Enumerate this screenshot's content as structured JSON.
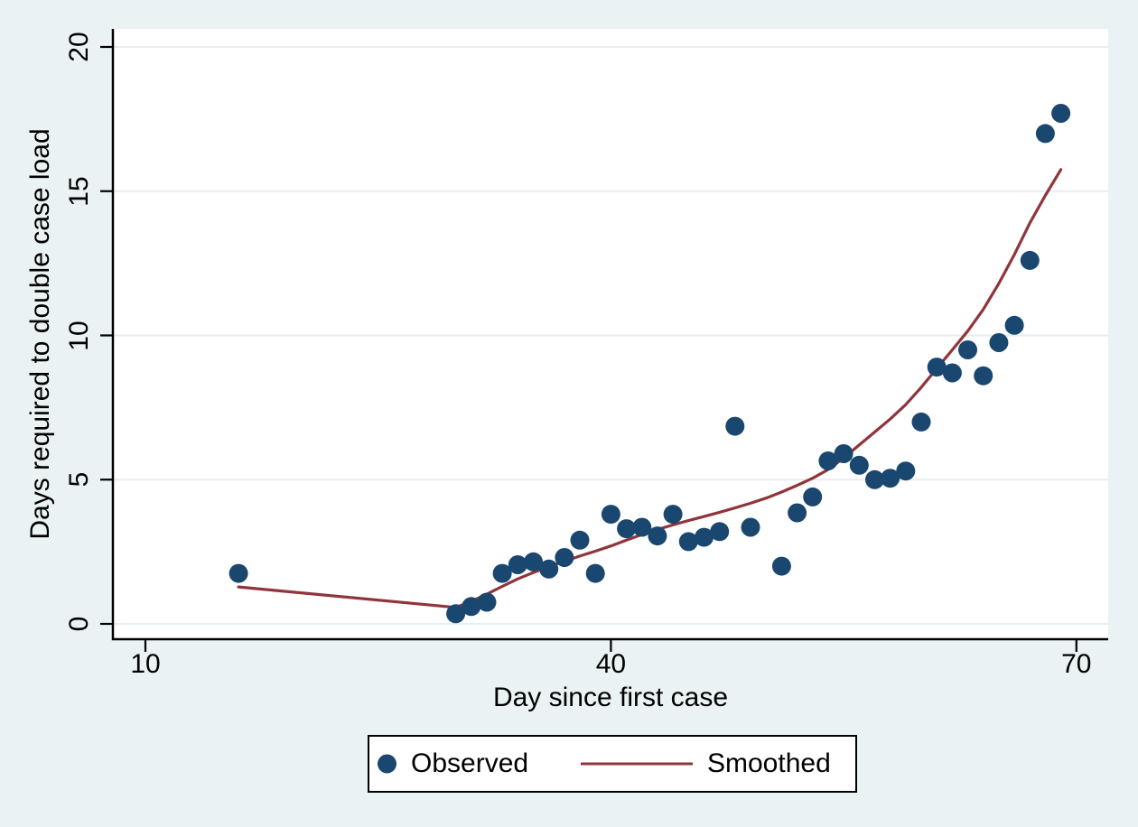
{
  "chart_data": {
    "type": "scatter",
    "title": "",
    "xlabel": "Day since first case",
    "ylabel": "Days required to double case load",
    "xlim": [
      8,
      72
    ],
    "ylim": [
      -0.55,
      20.6
    ],
    "x_ticks": [
      10,
      40,
      70
    ],
    "y_ticks": [
      0,
      5,
      10,
      15,
      20
    ],
    "grid": "horizontal",
    "legend_position": "bottom-center",
    "series": [
      {
        "name": "Observed",
        "type": "scatter",
        "color": "#1a476f",
        "points": [
          [
            16,
            1.75
          ],
          [
            30,
            0.35
          ],
          [
            31,
            0.6
          ],
          [
            32,
            0.75
          ],
          [
            33,
            1.75
          ],
          [
            34,
            2.05
          ],
          [
            35,
            2.15
          ],
          [
            36,
            1.9
          ],
          [
            37,
            2.3
          ],
          [
            38,
            2.9
          ],
          [
            39,
            1.75
          ],
          [
            40,
            3.8
          ],
          [
            41,
            3.3
          ],
          [
            42,
            3.35
          ],
          [
            43,
            3.05
          ],
          [
            44,
            3.8
          ],
          [
            45,
            2.85
          ],
          [
            46,
            3.0
          ],
          [
            47,
            3.2
          ],
          [
            48,
            6.85
          ],
          [
            49,
            3.35
          ],
          [
            51,
            2.0
          ],
          [
            52,
            3.85
          ],
          [
            53,
            4.4
          ],
          [
            54,
            5.65
          ],
          [
            55,
            5.9
          ],
          [
            56,
            5.5
          ],
          [
            57,
            5.0
          ],
          [
            58,
            5.05
          ],
          [
            59,
            5.3
          ],
          [
            60,
            7.0
          ],
          [
            61,
            8.9
          ],
          [
            62,
            8.7
          ],
          [
            63,
            9.5
          ],
          [
            64,
            8.6
          ],
          [
            65,
            9.75
          ],
          [
            66,
            10.35
          ],
          [
            67,
            12.6
          ],
          [
            68,
            17.0
          ],
          [
            69,
            17.7
          ]
        ]
      },
      {
        "name": "Smoothed",
        "type": "line",
        "color": "#90353b",
        "points": [
          [
            16,
            1.28
          ],
          [
            30,
            0.57
          ],
          [
            31,
            0.78
          ],
          [
            32,
            1.03
          ],
          [
            33,
            1.3
          ],
          [
            34,
            1.56
          ],
          [
            35,
            1.78
          ],
          [
            36,
            1.98
          ],
          [
            37,
            2.17
          ],
          [
            38,
            2.35
          ],
          [
            39,
            2.52
          ],
          [
            40,
            2.7
          ],
          [
            41,
            2.9
          ],
          [
            42,
            3.1
          ],
          [
            43,
            3.27
          ],
          [
            44,
            3.43
          ],
          [
            45,
            3.58
          ],
          [
            46,
            3.72
          ],
          [
            47,
            3.87
          ],
          [
            48,
            4.02
          ],
          [
            49,
            4.18
          ],
          [
            50,
            4.36
          ],
          [
            51,
            4.57
          ],
          [
            52,
            4.8
          ],
          [
            53,
            5.05
          ],
          [
            54,
            5.35
          ],
          [
            55,
            5.75
          ],
          [
            56,
            6.2
          ],
          [
            57,
            6.65
          ],
          [
            58,
            7.1
          ],
          [
            59,
            7.6
          ],
          [
            60,
            8.2
          ],
          [
            61,
            8.85
          ],
          [
            62,
            9.5
          ],
          [
            63,
            10.15
          ],
          [
            64,
            10.9
          ],
          [
            65,
            11.8
          ],
          [
            66,
            12.8
          ],
          [
            67,
            13.9
          ],
          [
            68,
            14.85
          ],
          [
            69,
            15.75
          ]
        ]
      }
    ]
  },
  "legend": {
    "items": [
      {
        "label": "Observed",
        "marker": "dot-icon",
        "color": "#1a476f"
      },
      {
        "label": "Smoothed",
        "marker": "line-icon",
        "color": "#90353b"
      }
    ]
  },
  "colors": {
    "background": "#eaf2f3",
    "plot_background": "#ffffff",
    "gridline": "#e6eef2",
    "axis": "#000000",
    "observed": "#1a476f",
    "smoothed": "#90353b"
  }
}
